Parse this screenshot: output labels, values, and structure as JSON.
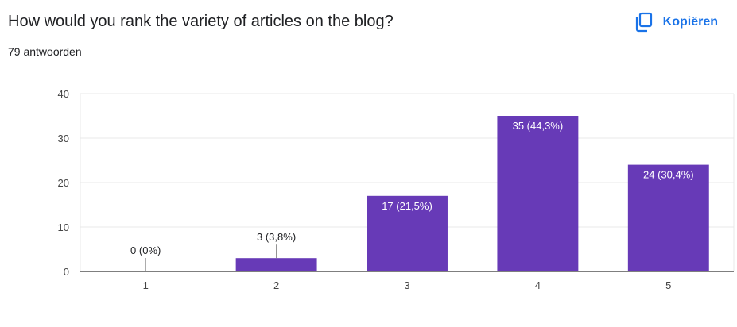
{
  "header": {
    "question": "How would you rank the variety of articles on the blog?",
    "response_count": "79 antwoorden",
    "copy_label": "Kopiëren",
    "copy_icon": "copy-icon"
  },
  "colors": {
    "bar": "#673ab7",
    "accent": "#1a73e8",
    "grid": "#e8e8e8",
    "axis": "#333333"
  },
  "chart_data": {
    "type": "bar",
    "categories": [
      "1",
      "2",
      "3",
      "4",
      "5"
    ],
    "values": [
      0,
      3,
      17,
      35,
      24
    ],
    "data_labels": [
      "0 (0%)",
      "3 (3,8%)",
      "17 (21,5%)",
      "35 (44,3%)",
      "24 (30,4%)"
    ],
    "yticks": [
      0,
      10,
      20,
      30,
      40
    ],
    "ylim": [
      0,
      40
    ],
    "grid": true,
    "legend": "none"
  }
}
